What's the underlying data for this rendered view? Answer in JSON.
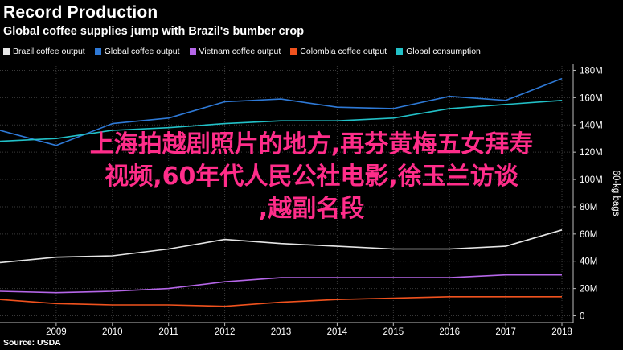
{
  "header": {
    "title": "Record Production",
    "subtitle": "Global coffee supplies jump with Brazil's bumber crop"
  },
  "source": "Source: USDA",
  "overlay": {
    "line1": "上海拍越剧照片的地方,再芬黄梅五女拜寿",
    "line2": "视频,60年代人民公社电影,徐玉兰访谈",
    "line3": ",越副名段",
    "color": "#ff2d8a"
  },
  "chart_data": {
    "type": "line",
    "title": "Record Production",
    "subtitle": "Global coffee supplies jump with Brazil's bumber crop",
    "xlabel": "",
    "ylabel": "60-kg bags",
    "x": [
      2008,
      2009,
      2010,
      2011,
      2012,
      2013,
      2014,
      2015,
      2016,
      2017,
      2018
    ],
    "xticks": [
      2009,
      2010,
      2011,
      2012,
      2013,
      2014,
      2015,
      2016,
      2017,
      2018
    ],
    "xlim": [
      2008,
      2018.2
    ],
    "ylim": [
      -5,
      185
    ],
    "yticks": [
      0,
      20,
      40,
      60,
      80,
      100,
      120,
      140,
      160,
      180
    ],
    "ytick_labels": [
      "0",
      "20M",
      "40M",
      "60M",
      "80M",
      "100M",
      "120M",
      "140M",
      "160M",
      "180M"
    ],
    "y_axis_side": "right",
    "grid": true,
    "legend": "top-left",
    "series": [
      {
        "name": "Brazil coffee output",
        "color": "#e6e6e6",
        "values": [
          39,
          43,
          44,
          49,
          56,
          53,
          51,
          49,
          49,
          51,
          63
        ]
      },
      {
        "name": "Global coffee output",
        "color": "#2e79d6",
        "values": [
          136,
          125,
          141,
          145,
          157,
          159,
          153,
          152,
          161,
          158,
          174
        ]
      },
      {
        "name": "Vietnam coffee output",
        "color": "#b566e8",
        "values": [
          18,
          17,
          18,
          20,
          25,
          28,
          28,
          28,
          28,
          30,
          30
        ]
      },
      {
        "name": "Colombia coffee output",
        "color": "#f0521e",
        "values": [
          12,
          9,
          8,
          8,
          7,
          10,
          12,
          13,
          14,
          14,
          14
        ]
      },
      {
        "name": "Global consumption",
        "color": "#22c1c8",
        "values": [
          128,
          130,
          136,
          138,
          141,
          143,
          143,
          145,
          152,
          155,
          158
        ]
      }
    ]
  }
}
